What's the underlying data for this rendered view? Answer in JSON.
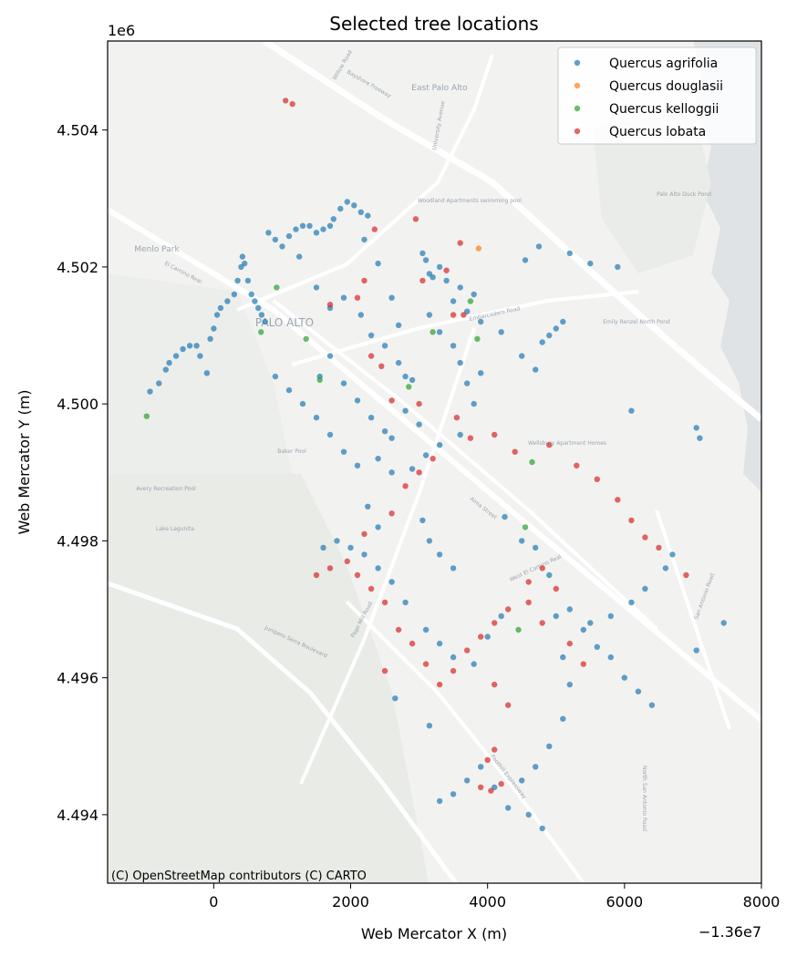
{
  "chart_data": {
    "type": "scatter",
    "title": "Selected tree locations",
    "xlabel": "Web Mercator X (m)",
    "ylabel": "Web Mercator Y (m)",
    "x_offset_label": "−1.36e7",
    "y_exponent_label": "1e6",
    "xlim": [
      -1550,
      8000
    ],
    "ylim": [
      4493000,
      4505300
    ],
    "xticks": [
      0,
      2000,
      4000,
      6000,
      8000
    ],
    "xtick_labels": [
      "0",
      "2000",
      "4000",
      "6000",
      "8000"
    ],
    "yticks": [
      4494000,
      4496000,
      4498000,
      4500000,
      4502000,
      4504000
    ],
    "ytick_labels": [
      "4.494",
      "4.496",
      "4.498",
      "4.500",
      "4.502",
      "4.504"
    ],
    "legend_position": "top-right",
    "attribution": "(C) OpenStreetMap contributors (C) CARTO",
    "basemap_labels": [
      "East Palo Alto",
      "Menlo Park",
      "PALO ALTO",
      "Woodland Apartments swimming pool",
      "Palo Alto Duck Pond",
      "Emily Renzel North Pond",
      "Wellsbury Apartment Homes",
      "Baker Pool",
      "Avery Recreation Pool",
      "Lake Lagunita",
      "Bayshore Freeway",
      "El Camino Real",
      "Alma Street",
      "Junipero Serra Boulevard",
      "Page Mill Road",
      "Foothill Expressway",
      "West El Camino Real",
      "North San Antonio Road",
      "San Antonio Road",
      "University Avenue",
      "Embarcadero Road",
      "Willow Road"
    ],
    "series": [
      {
        "name": "Quercus agrifolia",
        "color": "#1f77b4",
        "points": [
          [
            -930,
            4500180
          ],
          [
            -800,
            4500300
          ],
          [
            -700,
            4500500
          ],
          [
            -650,
            4500600
          ],
          [
            -550,
            4500700
          ],
          [
            -450,
            4500800
          ],
          [
            -350,
            4500850
          ],
          [
            -250,
            4500850
          ],
          [
            -200,
            4500700
          ],
          [
            -100,
            4500450
          ],
          [
            -50,
            4500950
          ],
          [
            0,
            4501100
          ],
          [
            50,
            4501300
          ],
          [
            100,
            4501400
          ],
          [
            200,
            4501500
          ],
          [
            300,
            4501600
          ],
          [
            350,
            4501800
          ],
          [
            400,
            4502000
          ],
          [
            420,
            4502150
          ],
          [
            450,
            4502050
          ],
          [
            500,
            4501800
          ],
          [
            550,
            4501600
          ],
          [
            600,
            4501500
          ],
          [
            650,
            4501400
          ],
          [
            700,
            4501300
          ],
          [
            750,
            4501200
          ],
          [
            800,
            4502500
          ],
          [
            900,
            4502400
          ],
          [
            1000,
            4502300
          ],
          [
            1100,
            4502450
          ],
          [
            1200,
            4502550
          ],
          [
            1300,
            4502600
          ],
          [
            1400,
            4502600
          ],
          [
            1500,
            4502500
          ],
          [
            1600,
            4502550
          ],
          [
            1700,
            4502600
          ],
          [
            1750,
            4502700
          ],
          [
            1850,
            4502850
          ],
          [
            1950,
            4502950
          ],
          [
            2050,
            4502900
          ],
          [
            2150,
            4502800
          ],
          [
            2250,
            4502750
          ],
          [
            1250,
            4502150
          ],
          [
            1500,
            4501700
          ],
          [
            1700,
            4501400
          ],
          [
            1900,
            4501550
          ],
          [
            2150,
            4501300
          ],
          [
            2300,
            4501000
          ],
          [
            2500,
            4500850
          ],
          [
            2700,
            4500600
          ],
          [
            2800,
            4500400
          ],
          [
            2900,
            4500350
          ],
          [
            2700,
            4501150
          ],
          [
            2600,
            4501550
          ],
          [
            2400,
            4502050
          ],
          [
            2200,
            4502400
          ],
          [
            3050,
            4502200
          ],
          [
            3100,
            4502100
          ],
          [
            3150,
            4501900
          ],
          [
            3200,
            4501850
          ],
          [
            3300,
            4502000
          ],
          [
            3400,
            4501800
          ],
          [
            3500,
            4501500
          ],
          [
            3150,
            4501300
          ],
          [
            3300,
            4501050
          ],
          [
            3500,
            4500850
          ],
          [
            3600,
            4500600
          ],
          [
            3700,
            4500300
          ],
          [
            3900,
            4500450
          ],
          [
            3800,
            4500000
          ],
          [
            3600,
            4499550
          ],
          [
            3300,
            4499400
          ],
          [
            3100,
            4499250
          ],
          [
            2900,
            4499050
          ],
          [
            2600,
            4499000
          ],
          [
            2400,
            4499200
          ],
          [
            2100,
            4499100
          ],
          [
            1900,
            4499300
          ],
          [
            1700,
            4499550
          ],
          [
            1500,
            4499800
          ],
          [
            1300,
            4500000
          ],
          [
            1100,
            4500200
          ],
          [
            900,
            4500400
          ],
          [
            1550,
            4500400
          ],
          [
            1700,
            4500700
          ],
          [
            1900,
            4500300
          ],
          [
            2100,
            4500050
          ],
          [
            2300,
            4499800
          ],
          [
            2500,
            4499600
          ],
          [
            2600,
            4499500
          ],
          [
            2800,
            4499900
          ],
          [
            3000,
            4499700
          ],
          [
            4250,
            4498350
          ],
          [
            4500,
            4498000
          ],
          [
            4700,
            4497900
          ],
          [
            4900,
            4497500
          ],
          [
            5200,
            4497000
          ],
          [
            5400,
            4496700
          ],
          [
            5600,
            4496450
          ],
          [
            5800,
            4496300
          ],
          [
            6000,
            4496000
          ],
          [
            6200,
            4495800
          ],
          [
            6400,
            4495600
          ],
          [
            5000,
            4496900
          ],
          [
            5100,
            4496300
          ],
          [
            5200,
            4495900
          ],
          [
            5100,
            4495400
          ],
          [
            4900,
            4495000
          ],
          [
            4700,
            4494700
          ],
          [
            4500,
            4494500
          ],
          [
            3300,
            4494200
          ],
          [
            3500,
            4494300
          ],
          [
            3700,
            4494500
          ],
          [
            3900,
            4494700
          ],
          [
            4100,
            4494400
          ],
          [
            4300,
            4494100
          ],
          [
            4600,
            4494000
          ],
          [
            4800,
            4493800
          ],
          [
            3100,
            4496700
          ],
          [
            3300,
            4496500
          ],
          [
            3500,
            4496300
          ],
          [
            3800,
            4496200
          ],
          [
            4000,
            4496600
          ],
          [
            4200,
            4496900
          ],
          [
            3050,
            4498300
          ],
          [
            3150,
            4498000
          ],
          [
            3300,
            4497800
          ],
          [
            3500,
            4497600
          ],
          [
            2800,
            4497100
          ],
          [
            2600,
            4497400
          ],
          [
            2400,
            4497600
          ],
          [
            2200,
            4497800
          ],
          [
            2000,
            4497900
          ],
          [
            1800,
            4498000
          ],
          [
            1600,
            4497900
          ],
          [
            2250,
            4498500
          ],
          [
            2400,
            4498200
          ],
          [
            2650,
            4495700
          ],
          [
            3150,
            4495300
          ],
          [
            4550,
            4502100
          ],
          [
            4750,
            4502300
          ],
          [
            5200,
            4502200
          ],
          [
            5500,
            4502050
          ],
          [
            5900,
            4502000
          ],
          [
            5100,
            4501200
          ],
          [
            5000,
            4501100
          ],
          [
            4900,
            4501000
          ],
          [
            4800,
            4500900
          ],
          [
            6100,
            4499900
          ],
          [
            7050,
            4499650
          ],
          [
            7100,
            4499500
          ],
          [
            6700,
            4497800
          ],
          [
            6600,
            4497600
          ],
          [
            6300,
            4497300
          ],
          [
            6100,
            4497100
          ],
          [
            5800,
            4496900
          ],
          [
            5500,
            4496800
          ],
          [
            7050,
            4496400
          ],
          [
            7450,
            4496800
          ],
          [
            3800,
            4501600
          ],
          [
            3600,
            4501700
          ],
          [
            3700,
            4501350
          ],
          [
            3900,
            4501200
          ],
          [
            4200,
            4501050
          ],
          [
            4500,
            4500700
          ],
          [
            4700,
            4500500
          ]
        ]
      },
      {
        "name": "Quercus douglasii",
        "color": "#ff7f0e",
        "points": [
          [
            3870,
            4502270
          ]
        ]
      },
      {
        "name": "Quercus kelloggii",
        "color": "#2ca02c",
        "points": [
          [
            -980,
            4499820
          ],
          [
            920,
            4501700
          ],
          [
            690,
            4501050
          ],
          [
            1350,
            4500950
          ],
          [
            1550,
            4500350
          ],
          [
            2850,
            4500250
          ],
          [
            3200,
            4501050
          ],
          [
            3750,
            4501500
          ],
          [
            3850,
            4500950
          ],
          [
            4650,
            4499150
          ],
          [
            4550,
            4498200
          ],
          [
            4450,
            4496700
          ]
        ]
      },
      {
        "name": "Quercus lobata",
        "color": "#d62728",
        "points": [
          [
            1050,
            4504430
          ],
          [
            1150,
            4504380
          ],
          [
            2350,
            4502550
          ],
          [
            2950,
            4502700
          ],
          [
            3600,
            4502350
          ],
          [
            3400,
            4501950
          ],
          [
            3050,
            4501800
          ],
          [
            3500,
            4501300
          ],
          [
            3650,
            4501300
          ],
          [
            2200,
            4501800
          ],
          [
            2100,
            4501550
          ],
          [
            1700,
            4501450
          ],
          [
            2300,
            4500700
          ],
          [
            2450,
            4500550
          ],
          [
            2600,
            4500050
          ],
          [
            3000,
            4500000
          ],
          [
            3550,
            4499800
          ],
          [
            3750,
            4499500
          ],
          [
            4100,
            4499550
          ],
          [
            4400,
            4499300
          ],
          [
            4900,
            4499400
          ],
          [
            5300,
            4499100
          ],
          [
            5600,
            4498900
          ],
          [
            5900,
            4498600
          ],
          [
            6100,
            4498300
          ],
          [
            6300,
            4498050
          ],
          [
            6500,
            4497900
          ],
          [
            6900,
            4497500
          ],
          [
            4800,
            4497600
          ],
          [
            4600,
            4497400
          ],
          [
            4300,
            4497000
          ],
          [
            4100,
            4496800
          ],
          [
            3900,
            4496600
          ],
          [
            3700,
            4496400
          ],
          [
            3500,
            4496100
          ],
          [
            3300,
            4495900
          ],
          [
            3100,
            4496200
          ],
          [
            2900,
            4496500
          ],
          [
            2700,
            4496700
          ],
          [
            2500,
            4497100
          ],
          [
            2300,
            4497300
          ],
          [
            2100,
            4497500
          ],
          [
            1950,
            4497700
          ],
          [
            1700,
            4497600
          ],
          [
            1500,
            4497500
          ],
          [
            2200,
            4498100
          ],
          [
            2600,
            4498400
          ],
          [
            2800,
            4498800
          ],
          [
            3000,
            4499000
          ],
          [
            3200,
            4499200
          ],
          [
            2500,
            4496100
          ],
          [
            4100,
            4495900
          ],
          [
            4300,
            4495600
          ],
          [
            4100,
            4494950
          ],
          [
            4000,
            4494800
          ],
          [
            4050,
            4494350
          ],
          [
            4200,
            4494450
          ],
          [
            3900,
            4494400
          ],
          [
            4600,
            4497100
          ],
          [
            5200,
            4496500
          ],
          [
            5400,
            4496200
          ],
          [
            4800,
            4496800
          ],
          [
            5000,
            4497300
          ]
        ]
      }
    ]
  }
}
